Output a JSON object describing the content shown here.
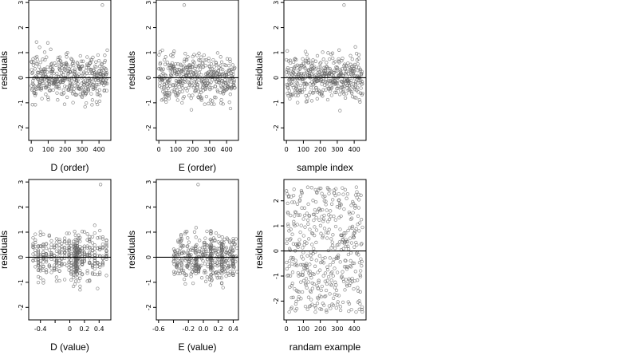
{
  "chart_data": [
    {
      "type": "scatter",
      "xlabel": "D (order)",
      "ylabel": "residuals",
      "xlim": [
        -15,
        470
      ],
      "ylim": [
        -2.5,
        3.1
      ],
      "xticks": [
        0,
        100,
        200,
        300,
        400
      ],
      "xtick_labels": [
        "0",
        "100",
        "200",
        "300",
        "400"
      ],
      "yticks": [
        -2,
        -1,
        0,
        1,
        2,
        3
      ],
      "ytick_labels": [
        "-2",
        "-1",
        "0",
        "1",
        "2",
        "3"
      ],
      "reference_line_y": 0,
      "n_points": 450,
      "points_description": "450 residuals across the order index, mostly within -1.5 to 1.5; highest about 2.9 near index 420"
    },
    {
      "type": "scatter",
      "xlabel": "E (order)",
      "ylabel": "residuals",
      "xlim": [
        -15,
        470
      ],
      "ylim": [
        -2.5,
        3.1
      ],
      "xticks": [
        0,
        100,
        200,
        300,
        400
      ],
      "xtick_labels": [
        "0",
        "100",
        "200",
        "300",
        "400"
      ],
      "yticks": [
        -2,
        -1,
        0,
        1,
        2,
        3
      ],
      "ytick_labels": [
        "-2",
        "-1",
        "0",
        "1",
        "2",
        "3"
      ],
      "reference_line_y": 0,
      "n_points": 450,
      "points_description": "450 residuals across the order index, mostly within -1.5 to 1.5; highest about 2.9 near index 150"
    },
    {
      "type": "scatter",
      "xlabel": "sample index",
      "ylabel": "residuals",
      "xlim": [
        -15,
        470
      ],
      "ylim": [
        -2.5,
        3.1
      ],
      "xticks": [
        0,
        100,
        200,
        300,
        400
      ],
      "xtick_labels": [
        "0",
        "100",
        "200",
        "300",
        "400"
      ],
      "yticks": [
        -2,
        -1,
        0,
        1,
        2,
        3
      ],
      "ytick_labels": [
        "-2",
        "-1",
        "0",
        "1",
        "2",
        "3"
      ],
      "reference_line_y": 0,
      "n_points": 450,
      "points_description": "450 residuals against sample index, mostly within -1.5 to 1.5; highest about 2.9 near index 340"
    },
    {
      "type": "scatter",
      "xlabel": "D (value)",
      "ylabel": "residuals",
      "xlim": [
        -0.56,
        0.56
      ],
      "ylim": [
        -2.5,
        3.1
      ],
      "xticks": [
        -0.4,
        0,
        0.2,
        0.4
      ],
      "xtick_labels": [
        "-0.4",
        "0",
        "0.2",
        "0.4"
      ],
      "minor_xticks": [
        -0.2
      ],
      "yticks": [
        -2,
        -1,
        0,
        1,
        2,
        3
      ],
      "ytick_labels": [
        "-2",
        "-1",
        "0",
        "1",
        "2",
        "3"
      ],
      "reference_line_y": 0,
      "n_points": 450,
      "points_description": "450 residuals arranged in vertical columns at discrete D values between about -0.5 and 0.5, densest near 0.1"
    },
    {
      "type": "scatter",
      "xlabel": "E (value)",
      "ylabel": "residuals",
      "xlim": [
        -0.63,
        0.47
      ],
      "ylim": [
        -2.5,
        3.1
      ],
      "xticks": [
        -0.6,
        -0.2,
        0,
        0.2,
        0.4
      ],
      "xtick_labels": [
        "-0.6",
        "-0.2",
        "0.0",
        "0.2",
        "0.4"
      ],
      "minor_xticks": [
        -0.4
      ],
      "yticks": [
        -2,
        -1,
        0,
        1,
        2,
        3
      ],
      "ytick_labels": [
        "-2",
        "-1",
        "0",
        "1",
        "2",
        "3"
      ],
      "reference_line_y": 0,
      "n_points": 450,
      "points_description": "450 residuals against E values between about -0.4 and 0.45, with columns near 0.1, 0.25 and 0.4"
    },
    {
      "type": "scatter",
      "xlabel": "randam example",
      "ylabel": "residuals",
      "xlim": [
        -15,
        470
      ],
      "ylim": [
        -2.75,
        2.85
      ],
      "xticks": [
        0,
        100,
        200,
        300,
        400
      ],
      "xtick_labels": [
        "0",
        "100",
        "200",
        "300",
        "400"
      ],
      "yticks": [
        -2,
        -1,
        0,
        1,
        2
      ],
      "ytick_labels": [
        "-2",
        "-1",
        "0",
        "1",
        "2"
      ],
      "reference_line_y": 0,
      "n_points": 450,
      "points_description": "450 random residuals spread roughly uniformly between about -2.5 and 2.6"
    }
  ]
}
